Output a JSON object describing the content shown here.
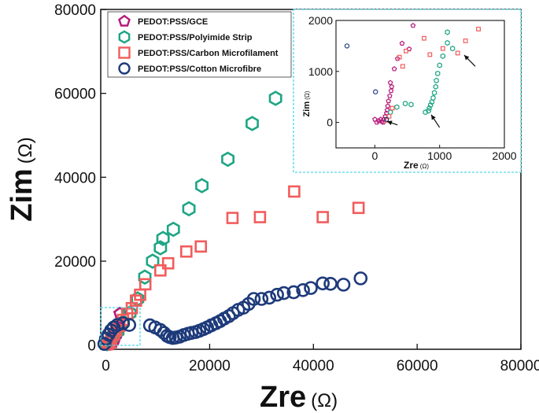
{
  "chart_data": {
    "type": "scatter",
    "xlabel": "Zre",
    "xunit": "(Ω)",
    "ylabel": "Zim",
    "yunit": "(Ω)",
    "xlim": [
      -1000,
      80000
    ],
    "ylim": [
      -1000,
      80000
    ],
    "xticks": [
      "0",
      "20000",
      "40000",
      "60000",
      "80000"
    ],
    "yticks": [
      "0",
      "20000",
      "40000",
      "60000",
      "80000"
    ],
    "legend_position": "top-left",
    "series": [
      {
        "name": "PEDOT:PSS/GCE",
        "marker": "pentagon",
        "color": "#b5197a",
        "points": [
          [
            120,
            20
          ],
          [
            250,
            60
          ],
          [
            450,
            120
          ],
          [
            800,
            250
          ],
          [
            1300,
            650
          ],
          [
            1700,
            1400
          ],
          [
            2200,
            2800
          ],
          [
            2500,
            4200
          ],
          [
            2700,
            7500
          ]
        ]
      },
      {
        "name": "PEDOT:PSS/Polyimide Strip",
        "marker": "hexagon",
        "color": "#1ea584",
        "points": [
          [
            200,
            300
          ],
          [
            500,
            500
          ],
          [
            800,
            900
          ],
          [
            1100,
            1500
          ],
          [
            1500,
            2400
          ],
          [
            2300,
            3300
          ],
          [
            3300,
            5400
          ],
          [
            4600,
            7600
          ],
          [
            6100,
            11000
          ],
          [
            7500,
            16200
          ],
          [
            9000,
            20000
          ],
          [
            10500,
            23200
          ],
          [
            11000,
            25400
          ],
          [
            13000,
            27600
          ],
          [
            16000,
            32500
          ],
          [
            18500,
            38000
          ],
          [
            23500,
            44300
          ],
          [
            28200,
            52800
          ],
          [
            32700,
            58800
          ]
        ]
      },
      {
        "name": "PEDOT:PSS/Carbon Microfilament",
        "marker": "square",
        "color": "#f25c5c",
        "points": [
          [
            300,
            200
          ],
          [
            700,
            500
          ],
          [
            1000,
            1200
          ],
          [
            1500,
            2500
          ],
          [
            2000,
            3500
          ],
          [
            2600,
            4600
          ],
          [
            3300,
            6000
          ],
          [
            4100,
            7500
          ],
          [
            5000,
            8800
          ],
          [
            5800,
            10600
          ],
          [
            6600,
            12000
          ],
          [
            7600,
            14500
          ],
          [
            10500,
            17800
          ],
          [
            12000,
            19500
          ],
          [
            15500,
            22300
          ],
          [
            18300,
            23500
          ],
          [
            24400,
            30300
          ],
          [
            29700,
            30500
          ],
          [
            36300,
            36600
          ],
          [
            41800,
            30500
          ],
          [
            48700,
            32700
          ]
        ]
      },
      {
        "name": "PEDOT:PSS/Cotton Microfibre",
        "marker": "circle",
        "color": "#1d3a7a",
        "points": [
          [
            -300,
            300
          ],
          [
            0,
            1500
          ],
          [
            500,
            2500
          ],
          [
            1000,
            3500
          ],
          [
            1500,
            4200
          ],
          [
            2200,
            4800
          ],
          [
            3300,
            5200
          ],
          [
            4500,
            4800
          ],
          [
            8500,
            4700
          ],
          [
            9500,
            4200
          ],
          [
            10500,
            3600
          ],
          [
            11200,
            2900
          ],
          [
            11800,
            2200
          ],
          [
            12300,
            1900
          ],
          [
            12900,
            1700
          ],
          [
            13500,
            1800
          ],
          [
            14200,
            2000
          ],
          [
            15000,
            2400
          ],
          [
            15800,
            2700
          ],
          [
            16500,
            2900
          ],
          [
            17300,
            3100
          ],
          [
            18000,
            3400
          ],
          [
            18800,
            3800
          ],
          [
            19500,
            4200
          ],
          [
            20300,
            4700
          ],
          [
            21200,
            5200
          ],
          [
            22000,
            5700
          ],
          [
            22800,
            6300
          ],
          [
            23700,
            6900
          ],
          [
            24500,
            7600
          ],
          [
            25500,
            8400
          ],
          [
            26500,
            8900
          ],
          [
            27500,
            9800
          ],
          [
            28500,
            11000
          ],
          [
            30000,
            11000
          ],
          [
            31500,
            11300
          ],
          [
            33000,
            12000
          ],
          [
            34300,
            12400
          ],
          [
            36200,
            12600
          ],
          [
            38000,
            13100
          ],
          [
            39500,
            13600
          ],
          [
            41800,
            14700
          ],
          [
            43300,
            14600
          ],
          [
            45800,
            14400
          ],
          [
            49100,
            15900
          ]
        ]
      }
    ],
    "inset": {
      "xlabel": "Zre",
      "xunit": "(Ω)",
      "ylabel": "Zim",
      "yunit": "(Ω)",
      "xlim": [
        -600,
        2000
      ],
      "ylim": [
        -500,
        2000
      ],
      "xticks": [
        "0",
        "1000",
        "2000"
      ],
      "yticks": [
        "0",
        "1000",
        "2000"
      ],
      "series": [
        {
          "name": "PEDOT:PSS/GCE",
          "marker": "pentagon",
          "color": "#b5197a",
          "points": [
            [
              0,
              60
            ],
            [
              30,
              0
            ],
            [
              60,
              30
            ],
            [
              90,
              60
            ],
            [
              110,
              20
            ],
            [
              130,
              0
            ],
            [
              140,
              60
            ],
            [
              160,
              120
            ],
            [
              180,
              180
            ],
            [
              190,
              240
            ],
            [
              200,
              320
            ],
            [
              210,
              420
            ],
            [
              230,
              520
            ],
            [
              250,
              620
            ],
            [
              260,
              700
            ],
            [
              240,
              780
            ],
            [
              300,
              1050
            ],
            [
              350,
              1250
            ],
            [
              420,
              1550
            ],
            [
              590,
              1900
            ],
            [
              530,
              1440
            ]
          ]
        },
        {
          "name": "PEDOT:PSS/Polyimide Strip",
          "marker": "hexagon",
          "color": "#1ea584",
          "points": [
            [
              240,
              200
            ],
            [
              340,
              300
            ],
            [
              470,
              370
            ],
            [
              560,
              350
            ],
            [
              780,
              200
            ],
            [
              830,
              230
            ],
            [
              840,
              280
            ],
            [
              860,
              340
            ],
            [
              880,
              400
            ],
            [
              900,
              480
            ],
            [
              920,
              580
            ],
            [
              940,
              700
            ],
            [
              950,
              820
            ],
            [
              970,
              960
            ],
            [
              1000,
              1120
            ],
            [
              1050,
              1300
            ],
            [
              1120,
              1560
            ],
            [
              1120,
              1770
            ],
            [
              1200,
              1450
            ]
          ]
        },
        {
          "name": "PEDOT:PSS/Carbon Microfilament",
          "marker": "square",
          "color": "#f25c5c",
          "points": [
            [
              180,
              40
            ],
            [
              220,
              120
            ],
            [
              270,
              280
            ],
            [
              380,
              1280
            ],
            [
              430,
              1100
            ],
            [
              480,
              1400
            ],
            [
              760,
              1650
            ],
            [
              850,
              1330
            ],
            [
              1050,
              1450
            ],
            [
              1280,
              1360
            ],
            [
              1400,
              1600
            ],
            [
              1600,
              1830
            ]
          ]
        },
        {
          "name": "PEDOT:PSS/Cotton Microfibre",
          "marker": "circle",
          "color": "#1d3a7a",
          "points": [
            [
              -430,
              1500
            ],
            [
              10,
              600
            ],
            [
              180,
              60
            ]
          ]
        }
      ],
      "arrows": [
        {
          "from": [
            350,
            -50
          ],
          "to": [
            190,
            20
          ]
        },
        {
          "from": [
            1000,
            -100
          ],
          "to": [
            870,
            150
          ]
        },
        {
          "from": [
            1550,
            1100
          ],
          "to": [
            1380,
            1320
          ]
        }
      ]
    }
  }
}
